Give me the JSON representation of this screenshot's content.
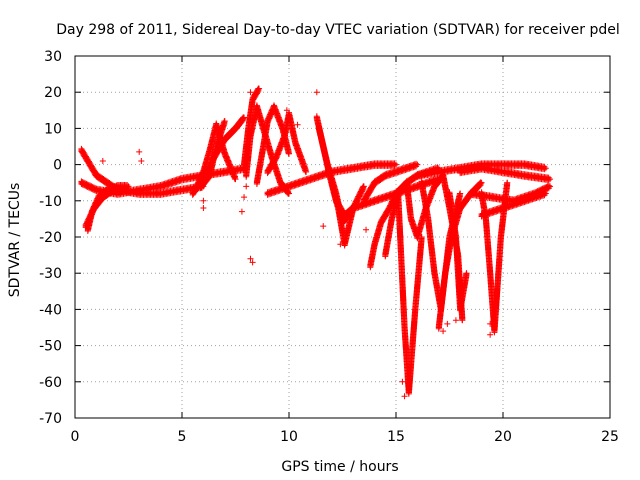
{
  "chart_data": {
    "type": "scatter",
    "title": "Day 298 of 2011, Sidereal Day-to-day VTEC variation (SDTVAR) for receiver pdel",
    "xlabel": "GPS time / hours",
    "ylabel": "SDTVAR / TECUs",
    "xlim": [
      0,
      25
    ],
    "ylim": [
      -70,
      30
    ],
    "xticks": [
      0,
      5,
      10,
      15,
      20,
      25
    ],
    "yticks": [
      -70,
      -60,
      -50,
      -40,
      -30,
      -20,
      -10,
      0,
      10,
      20,
      30
    ],
    "grid": true,
    "marker": "+",
    "color": "#ff0000",
    "traces": [
      {
        "x": [
          0.3,
          1.0,
          2.0,
          3.0,
          4.0,
          5.0,
          6.0,
          7.0,
          8.0
        ],
        "y": [
          -5,
          -7,
          -8,
          -7,
          -6,
          -4,
          -3,
          -2,
          -1
        ]
      },
      {
        "x": [
          0.3,
          1.0,
          2.0,
          3.0,
          4.0,
          5.0,
          6.0
        ],
        "y": [
          4,
          -3,
          -7,
          -8,
          -8,
          -7,
          -6
        ]
      },
      {
        "x": [
          0.6,
          0.8,
          1.1,
          1.5,
          2.0,
          2.5
        ],
        "y": [
          -18,
          -13,
          -9,
          -7,
          -6,
          -6
        ]
      },
      {
        "x": [
          0.5,
          0.9,
          1.3,
          1.8
        ],
        "y": [
          -17,
          -12,
          -9,
          -7
        ]
      },
      {
        "x": [
          5.7,
          6.0,
          6.3,
          6.6,
          7.0,
          7.5
        ],
        "y": [
          -6,
          -2,
          4,
          11,
          3,
          -4
        ]
      },
      {
        "x": [
          5.5,
          6.0,
          6.5,
          7.0,
          7.5,
          7.9
        ],
        "y": [
          -8,
          -4,
          2,
          7,
          10,
          13
        ]
      },
      {
        "x": [
          5.9,
          6.3,
          6.6,
          7.0
        ],
        "y": [
          -6,
          -3,
          5,
          12
        ]
      },
      {
        "x": [
          8.0,
          8.2,
          8.5,
          8.8,
          9.2,
          9.6,
          10.0
        ],
        "y": [
          -3,
          8,
          16,
          10,
          2,
          -5,
          -8
        ]
      },
      {
        "x": [
          8.5,
          8.8,
          9.0,
          9.3,
          9.7,
          10.0
        ],
        "y": [
          -5,
          5,
          12,
          16,
          10,
          3
        ]
      },
      {
        "x": [
          9.0,
          9.4,
          9.8,
          10.0,
          10.3,
          10.8
        ],
        "y": [
          -2,
          2,
          8,
          14,
          6,
          -2
        ]
      },
      {
        "x": [
          7.9,
          8.1,
          8.3,
          8.6
        ],
        "y": [
          0,
          10,
          18,
          21
        ]
      },
      {
        "x": [
          9.0,
          10.0,
          11.0,
          12.0,
          13.0,
          14.0,
          15.0
        ],
        "y": [
          -8,
          -6,
          -4,
          -2,
          -1,
          0,
          0
        ]
      },
      {
        "x": [
          11.3,
          11.6,
          11.9,
          12.2,
          12.6,
          13.0
        ],
        "y": [
          13,
          5,
          -3,
          -10,
          -14,
          -12
        ]
      },
      {
        "x": [
          11.4,
          11.8,
          12.2,
          12.5,
          13.0,
          13.5
        ],
        "y": [
          10,
          0,
          -8,
          -16,
          -12,
          -6
        ]
      },
      {
        "x": [
          12.0,
          12.3,
          12.6,
          13.0
        ],
        "y": [
          -5,
          -12,
          -22,
          -12
        ]
      },
      {
        "x": [
          13.5,
          14.0,
          14.5,
          15.0,
          15.5,
          16.0
        ],
        "y": [
          -10,
          -5,
          -3,
          -2,
          -1,
          0
        ]
      },
      {
        "x": [
          13.8,
          14.0,
          14.3,
          14.7,
          15.0,
          15.5,
          16.0,
          17.0
        ],
        "y": [
          -28,
          -22,
          -16,
          -12,
          -8,
          -5,
          -3,
          -1
        ]
      },
      {
        "x": [
          14.5,
          14.8,
          15.1,
          15.4,
          15.6,
          15.9,
          16.2
        ],
        "y": [
          -25,
          -15,
          -8,
          -45,
          -63,
          -40,
          -20
        ]
      },
      {
        "x": [
          15.5,
          15.7,
          16.0,
          16.4,
          16.8,
          17.2
        ],
        "y": [
          -5,
          -15,
          -20,
          -12,
          -6,
          -3
        ]
      },
      {
        "x": [
          16.2,
          16.5,
          16.8,
          17.1,
          17.5,
          18.0
        ],
        "y": [
          -5,
          -15,
          -30,
          -40,
          -20,
          -8
        ]
      },
      {
        "x": [
          17.0,
          17.3,
          17.6,
          18.0,
          18.5,
          19.0
        ],
        "y": [
          -45,
          -30,
          -20,
          -12,
          -8,
          -5
        ]
      },
      {
        "x": [
          17.5,
          17.8,
          18.0,
          18.3
        ],
        "y": [
          -8,
          -20,
          -40,
          -30
        ]
      },
      {
        "x": [
          17.2,
          17.5,
          17.9,
          18.1
        ],
        "y": [
          -3,
          -12,
          -25,
          -43
        ]
      },
      {
        "x": [
          19.0,
          19.2,
          19.4,
          19.6,
          19.9,
          20.2
        ],
        "y": [
          -8,
          -15,
          -30,
          -46,
          -20,
          -5
        ]
      },
      {
        "x": [
          18.0,
          19.0,
          20.0,
          21.0,
          22.2
        ],
        "y": [
          -2,
          -1,
          -2,
          -3,
          -4
        ]
      },
      {
        "x": [
          18.5,
          19.5,
          20.5,
          21.5,
          22.2
        ],
        "y": [
          -8,
          -9,
          -10,
          -8,
          -6
        ]
      },
      {
        "x": [
          19.0,
          20.0,
          21.0,
          22.0
        ],
        "y": [
          -14,
          -12,
          -10,
          -8
        ]
      },
      {
        "x": [
          16.0,
          17.0,
          18.0,
          19.0,
          20.0,
          21.0,
          22.0
        ],
        "y": [
          -3,
          -2,
          -1,
          0,
          0,
          0,
          -1
        ]
      },
      {
        "x": [
          13.0,
          14.0,
          15.0,
          16.0,
          17.0
        ],
        "y": [
          -12,
          -10,
          -8,
          -6,
          -4
        ]
      }
    ],
    "outliers": [
      {
        "x": 1.3,
        "y": 1
      },
      {
        "x": 3.0,
        "y": 3.5
      },
      {
        "x": 3.1,
        "y": 1
      },
      {
        "x": 3.8,
        "y": -8
      },
      {
        "x": 6.0,
        "y": -12
      },
      {
        "x": 6.0,
        "y": -10
      },
      {
        "x": 7.8,
        "y": -13
      },
      {
        "x": 7.9,
        "y": -9
      },
      {
        "x": 8.0,
        "y": -6
      },
      {
        "x": 8.2,
        "y": -26
      },
      {
        "x": 8.3,
        "y": -27
      },
      {
        "x": 8.2,
        "y": 20
      },
      {
        "x": 8.6,
        "y": -2
      },
      {
        "x": 9.1,
        "y": 4
      },
      {
        "x": 9.9,
        "y": 15
      },
      {
        "x": 10.4,
        "y": 11
      },
      {
        "x": 11.3,
        "y": 20
      },
      {
        "x": 11.6,
        "y": -17
      },
      {
        "x": 12.4,
        "y": -22
      },
      {
        "x": 13.6,
        "y": -18
      },
      {
        "x": 15.4,
        "y": -64
      },
      {
        "x": 15.3,
        "y": -60
      },
      {
        "x": 17.2,
        "y": -46
      },
      {
        "x": 17.4,
        "y": -44
      },
      {
        "x": 17.8,
        "y": -43
      },
      {
        "x": 19.4,
        "y": -47
      },
      {
        "x": 19.4,
        "y": -44
      }
    ]
  }
}
